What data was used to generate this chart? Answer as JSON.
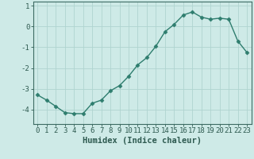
{
  "title": "",
  "xlabel": "Humidex (Indice chaleur)",
  "ylabel": "",
  "x": [
    0,
    1,
    2,
    3,
    4,
    5,
    6,
    7,
    8,
    9,
    10,
    11,
    12,
    13,
    14,
    15,
    16,
    17,
    18,
    19,
    20,
    21,
    22,
    23
  ],
  "y": [
    -3.3,
    -3.55,
    -3.85,
    -4.15,
    -4.2,
    -4.2,
    -3.7,
    -3.55,
    -3.1,
    -2.85,
    -2.4,
    -1.85,
    -1.5,
    -0.95,
    -0.25,
    0.1,
    0.55,
    0.7,
    0.45,
    0.35,
    0.4,
    0.35,
    -0.7,
    -1.25
  ],
  "line_color": "#2e7d6e",
  "marker": "D",
  "marker_size": 2.5,
  "bg_color": "#ceeae7",
  "grid_color": "#afd4d0",
  "axis_color": "#3d6b64",
  "tick_color": "#2e5a50",
  "ylim": [
    -4.7,
    1.2
  ],
  "xlim": [
    -0.5,
    23.5
  ],
  "yticks": [
    1,
    0,
    -1,
    -2,
    -3,
    -4
  ],
  "xticks": [
    0,
    1,
    2,
    3,
    4,
    5,
    6,
    7,
    8,
    9,
    10,
    11,
    12,
    13,
    14,
    15,
    16,
    17,
    18,
    19,
    20,
    21,
    22,
    23
  ],
  "font_color": "#2e5a50",
  "xlabel_fontsize": 7.5,
  "tick_fontsize": 6.5,
  "linewidth": 1.0
}
